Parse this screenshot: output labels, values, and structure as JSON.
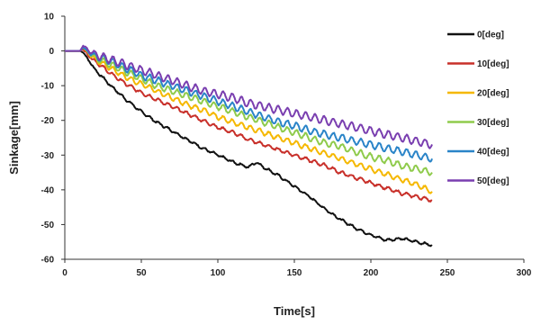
{
  "chart_data": {
    "type": "line",
    "title": "",
    "xlabel": "Time[s]",
    "ylabel": "Sinkage[mm]",
    "xlim": [
      0,
      300
    ],
    "ylim": [
      -60,
      10
    ],
    "xticks": [
      0,
      50,
      100,
      150,
      200,
      250,
      300
    ],
    "yticks": [
      10,
      0,
      -10,
      -20,
      -30,
      -40,
      -50,
      -60
    ],
    "grid": false,
    "legend_position": "right",
    "series": [
      {
        "name": "0[deg]",
        "color": "#111111",
        "wave_amplitude": 0.3,
        "wave_period": 6,
        "x": [
          0,
          5,
          10,
          12,
          14,
          16,
          20,
          30,
          40,
          50,
          60,
          70,
          80,
          90,
          100,
          110,
          120,
          125,
          130,
          140,
          150,
          160,
          170,
          180,
          190,
          200,
          210,
          220,
          230,
          240
        ],
        "y": [
          0,
          0,
          0,
          -0.5,
          -1.5,
          -3,
          -5.5,
          -10,
          -14,
          -17.5,
          -20.5,
          -23,
          -25.5,
          -28,
          -30,
          -32,
          -33.5,
          -32,
          -33.5,
          -36,
          -39,
          -42,
          -45.5,
          -48.5,
          -51,
          -53,
          -54.5,
          -54,
          -55,
          -56
        ]
      },
      {
        "name": "10[deg]",
        "color": "#c8302a",
        "wave_amplitude": 0.45,
        "wave_period": 6,
        "x": [
          0,
          5,
          10,
          12,
          16,
          20,
          30,
          40,
          50,
          60,
          70,
          80,
          90,
          100,
          110,
          120,
          130,
          140,
          150,
          160,
          170,
          180,
          190,
          200,
          210,
          220,
          230,
          240
        ],
        "y": [
          0,
          0,
          0,
          0.5,
          -1.5,
          -3,
          -6.5,
          -9.5,
          -12,
          -14,
          -16,
          -18,
          -20,
          -22,
          -23.5,
          -25.5,
          -27,
          -28.5,
          -30,
          -31.5,
          -33,
          -35,
          -36.5,
          -38,
          -39.5,
          -41,
          -42,
          -43
        ]
      },
      {
        "name": "20[deg]",
        "color": "#f5b800",
        "wave_amplitude": 0.7,
        "wave_period": 6,
        "x": [
          0,
          5,
          10,
          12,
          16,
          20,
          30,
          40,
          50,
          60,
          70,
          80,
          90,
          100,
          110,
          120,
          130,
          140,
          150,
          160,
          170,
          180,
          190,
          200,
          210,
          220,
          230,
          240
        ],
        "y": [
          0,
          0,
          0,
          1,
          -1,
          -2.5,
          -5,
          -7.5,
          -9.5,
          -11.5,
          -13.5,
          -15.5,
          -17,
          -19,
          -20.5,
          -22,
          -23.5,
          -25,
          -26.5,
          -28,
          -29.5,
          -31,
          -32.5,
          -34,
          -35.5,
          -37,
          -38.5,
          -40.5
        ]
      },
      {
        "name": "30[deg]",
        "color": "#8fcb4c",
        "wave_amplitude": 0.9,
        "wave_period": 6,
        "x": [
          0,
          5,
          10,
          12,
          16,
          20,
          30,
          40,
          50,
          60,
          70,
          80,
          90,
          100,
          110,
          120,
          130,
          140,
          150,
          160,
          170,
          180,
          190,
          200,
          210,
          220,
          230,
          240
        ],
        "y": [
          0,
          0,
          0,
          1,
          -0.5,
          -2,
          -4,
          -6,
          -8,
          -10,
          -11.5,
          -13,
          -14.5,
          -16,
          -17.5,
          -19,
          -20.5,
          -22,
          -23.5,
          -25,
          -26.5,
          -27.5,
          -29,
          -30.5,
          -31.5,
          -33,
          -34,
          -35
        ]
      },
      {
        "name": "40[deg]",
        "color": "#2a84c8",
        "wave_amplitude": 1.0,
        "wave_period": 6,
        "x": [
          0,
          5,
          10,
          12,
          16,
          20,
          30,
          40,
          50,
          60,
          70,
          80,
          90,
          100,
          110,
          120,
          130,
          140,
          150,
          160,
          170,
          180,
          190,
          200,
          210,
          220,
          230,
          240
        ],
        "y": [
          0,
          0,
          0,
          1,
          -0.5,
          -1.5,
          -3,
          -5,
          -7,
          -8.5,
          -10,
          -11.5,
          -13,
          -14.5,
          -16,
          -17.5,
          -19,
          -20.5,
          -21.5,
          -23,
          -24,
          -25,
          -26,
          -27,
          -28,
          -29,
          -30,
          -31
        ]
      },
      {
        "name": "50[deg]",
        "color": "#7a3fb0",
        "wave_amplitude": 1.1,
        "wave_period": 6,
        "x": [
          0,
          5,
          10,
          12,
          16,
          20,
          30,
          40,
          50,
          60,
          70,
          80,
          90,
          100,
          110,
          120,
          130,
          140,
          150,
          160,
          170,
          180,
          190,
          200,
          210,
          220,
          230,
          240
        ],
        "y": [
          0,
          0,
          0,
          1.5,
          0,
          -1,
          -2.5,
          -4,
          -5.5,
          -7,
          -8.5,
          -10,
          -11.5,
          -12.5,
          -13.5,
          -15,
          -16,
          -17,
          -18,
          -19,
          -20,
          -21,
          -22,
          -23,
          -24,
          -25,
          -26,
          -27
        ]
      }
    ]
  }
}
